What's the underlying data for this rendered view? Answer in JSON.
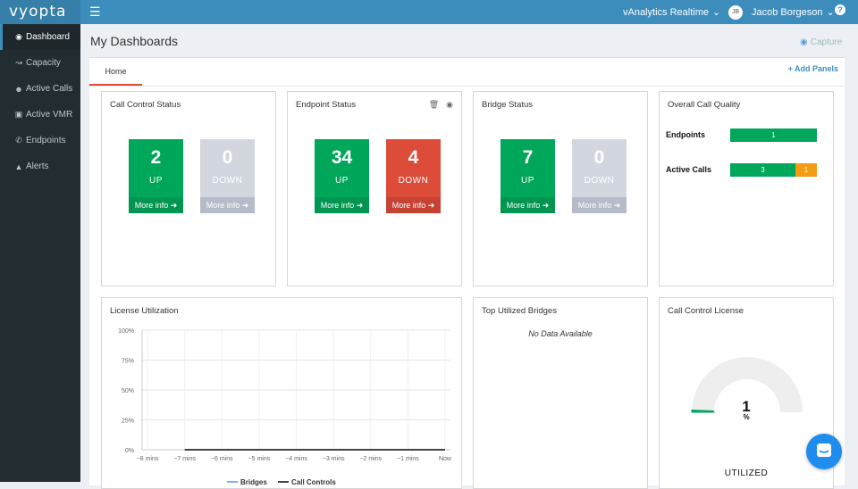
{
  "app": {
    "logo": "vyopta"
  },
  "topbar": {
    "realtime": "vAnalytics Realtime",
    "user_initials": "JB",
    "user_name": "Jacob Borgeson",
    "help": "?"
  },
  "sidebar": {
    "items": [
      {
        "label": "Dashboard",
        "icon": "dashboard-icon",
        "active": true
      },
      {
        "label": "Capacity",
        "icon": "line-chart-icon"
      },
      {
        "label": "Active Calls",
        "icon": "users-icon"
      },
      {
        "label": "Active VMR",
        "icon": "video-room-icon"
      },
      {
        "label": "Endpoints",
        "icon": "phone-icon"
      },
      {
        "label": "Alerts",
        "icon": "warning-icon"
      }
    ]
  },
  "page": {
    "title": "My Dashboards",
    "capture": "Capture"
  },
  "tabs": {
    "home": "Home",
    "add_panels": "+ Add Panels"
  },
  "call_control_status": {
    "title": "Call Control Status",
    "up": "2",
    "up_label": "UP",
    "down": "0",
    "down_label": "DOWN",
    "more": "More info"
  },
  "endpoint_status": {
    "title": "Endpoint Status",
    "up": "34",
    "up_label": "UP",
    "down": "4",
    "down_label": "DOWN",
    "more": "More info"
  },
  "bridge_status": {
    "title": "Bridge Status",
    "up": "7",
    "up_label": "UP",
    "down": "0",
    "down_label": "DOWN",
    "more": "More info"
  },
  "call_quality": {
    "title": "Overall Call Quality",
    "endpoints_label": "Endpoints",
    "endpoints_good": "1",
    "calls_label": "Active Calls",
    "calls_good": "3",
    "calls_fair": "1"
  },
  "license_utilization": {
    "title": "License Utilization"
  },
  "top_bridges": {
    "title": "Top Utilized Bridges",
    "nodata": "No Data Available"
  },
  "call_control_license": {
    "title": "Call Control License",
    "value": "1",
    "unit": "%",
    "label": "UTILIZED"
  },
  "colors": {
    "brand": "#3c8dbc",
    "up": "#00a65a",
    "down": "#dd4b39",
    "inactive": "#d2d6de",
    "fair": "#f39c12"
  },
  "chart_data": {
    "type": "line",
    "x": [
      "−8 mins",
      "−7 mins",
      "−6 mins",
      "−5 mins",
      "−4 mins",
      "−3 mins",
      "−2 mins",
      "−1 mins",
      "Now"
    ],
    "ylim": [
      0,
      100
    ],
    "yticks": [
      "0%",
      "25%",
      "50%",
      "75%",
      "100%"
    ],
    "series": [
      {
        "name": "Bridges",
        "color": "#7cb5ec",
        "values": [
          null,
          0,
          0,
          0,
          0,
          0,
          0,
          0,
          0
        ]
      },
      {
        "name": "Call Controls",
        "color": "#434348",
        "values": [
          null,
          0,
          0,
          0,
          0,
          0,
          0,
          0,
          0
        ]
      }
    ],
    "legend": "bottom"
  }
}
